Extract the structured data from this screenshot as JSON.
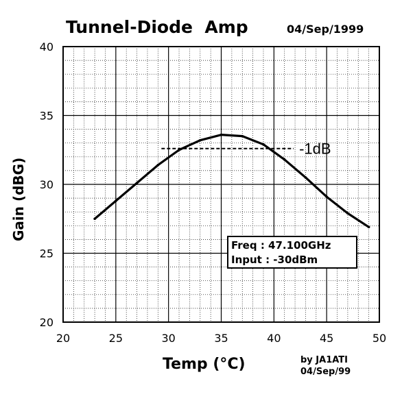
{
  "chart_data": {
    "type": "line",
    "title": "Tunnel-Diode  Amp",
    "date": "04/Sep/1999",
    "xlabel": "Temp (°C)",
    "ylabel": "Gain (dBG)",
    "xlim": [
      20,
      50
    ],
    "ylim": [
      20,
      40
    ],
    "x_ticks": [
      "20",
      "25",
      "30",
      "35",
      "40",
      "45",
      "50"
    ],
    "y_ticks": [
      "20",
      "25",
      "30",
      "35",
      "40"
    ],
    "grid": true,
    "series": [
      {
        "x": [
          23,
          25,
          27,
          29,
          31,
          33,
          35,
          37,
          39,
          41,
          43,
          45,
          47,
          49
        ],
        "y": [
          27.5,
          28.8,
          30.1,
          31.4,
          32.5,
          33.2,
          33.6,
          33.5,
          32.9,
          31.8,
          30.5,
          29.1,
          27.9,
          26.9
        ]
      }
    ],
    "annotations": {
      "minus1db_label": "-1dB",
      "minus1db_level": 32.6,
      "minus1db_range": [
        29,
        42
      ],
      "conditions": [
        "Freq : 47.100GHz",
        "Input : -30dBm"
      ]
    },
    "credit": [
      "by JA1ATI",
      "04/Sep/99"
    ]
  }
}
